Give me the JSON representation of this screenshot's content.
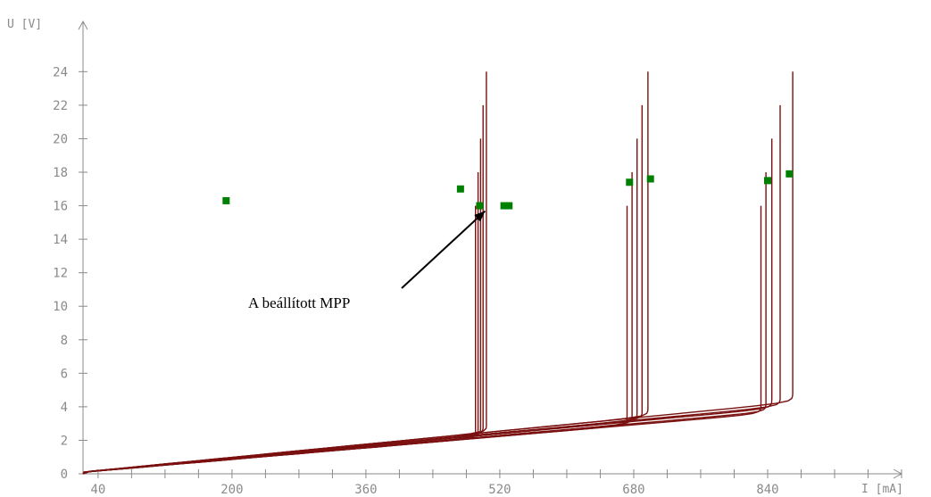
{
  "chart_data": {
    "type": "line",
    "title": "",
    "xlabel": "I [mA]",
    "ylabel": "U [V]",
    "xlim": [
      22,
      1000
    ],
    "ylim": [
      0,
      27
    ],
    "x_ticks": [
      40,
      200,
      360,
      520,
      680,
      840
    ],
    "x_minor_step": 40,
    "y_ticks": [
      0,
      2,
      4,
      6,
      8,
      10,
      12,
      14,
      16,
      18,
      20,
      22,
      24
    ],
    "grid": false,
    "colors": {
      "curve": "#7a1010",
      "mpp": "#008000",
      "axis": "#8a8a8a",
      "annotation": "#000000"
    },
    "series": [
      {
        "voc": 24.0,
        "slope": 0.0049,
        "isc": 504,
        "knee": 14
      },
      {
        "voc": 24.0,
        "slope": 0.0049,
        "isc": 697,
        "knee": 16
      },
      {
        "voc": 24.0,
        "slope": 0.0049,
        "isc": 870,
        "knee": 18
      },
      {
        "voc": 22.0,
        "slope": 0.0047,
        "isc": 500,
        "knee": 14
      },
      {
        "voc": 22.0,
        "slope": 0.0047,
        "isc": 690,
        "knee": 16
      },
      {
        "voc": 22.0,
        "slope": 0.0047,
        "isc": 855,
        "knee": 18
      },
      {
        "voc": 20.0,
        "slope": 0.0046,
        "isc": 497,
        "knee": 14
      },
      {
        "voc": 20.0,
        "slope": 0.0046,
        "isc": 684,
        "knee": 16
      },
      {
        "voc": 20.0,
        "slope": 0.0046,
        "isc": 845,
        "knee": 18
      },
      {
        "voc": 18.0,
        "slope": 0.0044,
        "isc": 494,
        "knee": 14
      },
      {
        "voc": 18.0,
        "slope": 0.0044,
        "isc": 678,
        "knee": 16
      },
      {
        "voc": 18.0,
        "slope": 0.0044,
        "isc": 838,
        "knee": 18
      },
      {
        "voc": 16.0,
        "slope": 0.0043,
        "isc": 491,
        "knee": 14
      },
      {
        "voc": 16.0,
        "slope": 0.0043,
        "isc": 672,
        "knee": 16
      },
      {
        "voc": 16.0,
        "slope": 0.0043,
        "isc": 832,
        "knee": 18
      }
    ],
    "mpp_points": [
      {
        "x": 193,
        "y": 16.3
      },
      {
        "x": 473,
        "y": 17.0
      },
      {
        "x": 496,
        "y": 16.0
      },
      {
        "x": 525,
        "y": 16.0
      },
      {
        "x": 531,
        "y": 16.0
      },
      {
        "x": 675,
        "y": 17.4
      },
      {
        "x": 700,
        "y": 17.6
      },
      {
        "x": 840,
        "y": 17.5
      },
      {
        "x": 866,
        "y": 17.9
      }
    ],
    "annotation": {
      "text": "A beállított MPP",
      "target_x": 496,
      "target_y": 16.0
    }
  }
}
